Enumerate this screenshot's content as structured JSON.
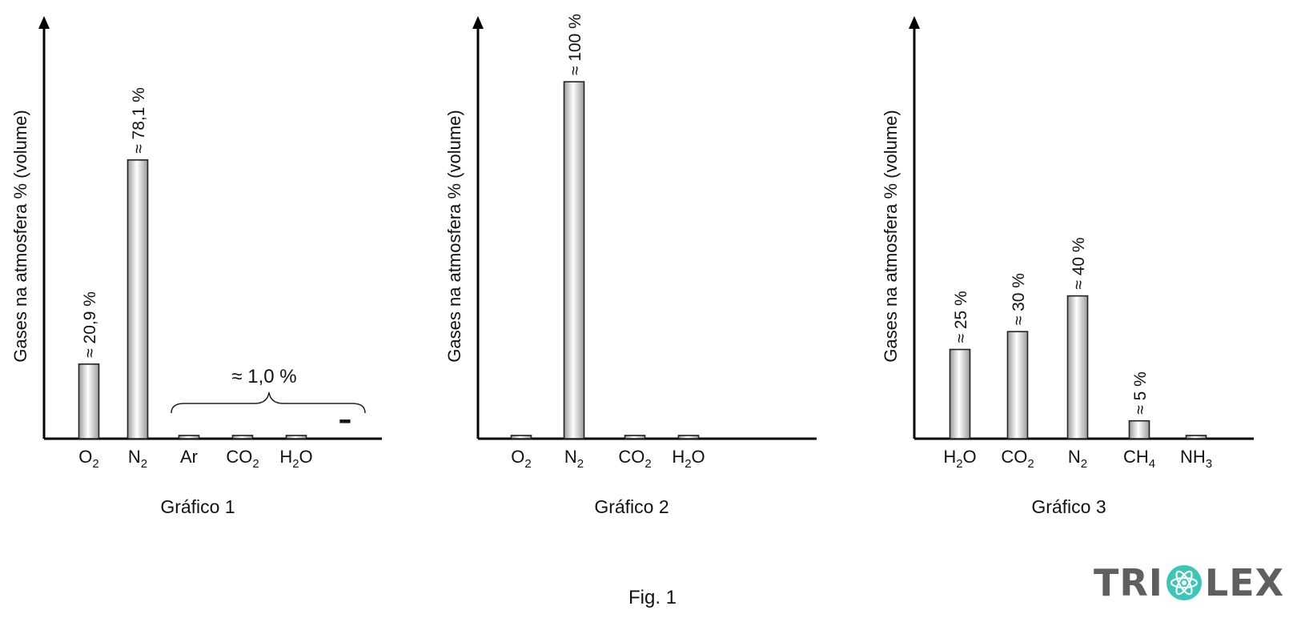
{
  "figure_caption": "Fig. 1",
  "logo_text": "TRIOLEX",
  "colors": {
    "axis": "#000000",
    "bar_edge": "#222222",
    "bar_light": "#ffffff",
    "bar_dark": "#9a9a9a",
    "logo_gray": "#5f5f5f",
    "logo_accent": "#3cc6b6"
  },
  "chart_data": [
    {
      "type": "bar",
      "title": "Gráfico 1",
      "ylabel": "Gases na atmosfera % (volume)",
      "categories": [
        {
          "base": "O",
          "sub": "2",
          "tail": ""
        },
        {
          "base": "N",
          "sub": "2",
          "tail": ""
        },
        {
          "base": "Ar",
          "sub": "",
          "tail": ""
        },
        {
          "base": "CO",
          "sub": "2",
          "tail": ""
        },
        {
          "base": "H",
          "sub": "2",
          "tail": "O"
        }
      ],
      "values": [
        20.9,
        78.1,
        0.9,
        0.9,
        0.9
      ],
      "bar_labels": [
        "≈ 20,9 %",
        "≈ 78,1 %",
        "",
        "",
        ""
      ],
      "group_annotation": "≈ 1,0 %",
      "continuation_marker": "▪▪▪",
      "ylim": [
        0,
        120
      ]
    },
    {
      "type": "bar",
      "title": "Gráfico 2",
      "ylabel": "Gases na atmosfera % (volume)",
      "categories": [
        {
          "base": "O",
          "sub": "2",
          "tail": ""
        },
        {
          "base": "N",
          "sub": "2",
          "tail": ""
        },
        {
          "base": "CO",
          "sub": "2",
          "tail": ""
        },
        {
          "base": "H",
          "sub": "2",
          "tail": "O"
        }
      ],
      "values": [
        0.9,
        100,
        0.9,
        0.9
      ],
      "bar_labels": [
        "",
        "≈ 100 %",
        "",
        ""
      ],
      "ylim": [
        0,
        120
      ]
    },
    {
      "type": "bar",
      "title": "Gráfico 3",
      "ylabel": "Gases na atmosfera % (volume)",
      "categories": [
        {
          "base": "H",
          "sub": "2",
          "tail": "O"
        },
        {
          "base": "CO",
          "sub": "2",
          "tail": ""
        },
        {
          "base": "N",
          "sub": "2",
          "tail": ""
        },
        {
          "base": "CH",
          "sub": "4",
          "tail": ""
        },
        {
          "base": "NH",
          "sub": "3",
          "tail": ""
        }
      ],
      "values": [
        25,
        30,
        40,
        5,
        0.9
      ],
      "bar_labels": [
        "≈ 25 %",
        "≈ 30 %",
        "≈ 40 %",
        "≈ 5 %",
        ""
      ],
      "ylim": [
        0,
        120
      ]
    }
  ]
}
